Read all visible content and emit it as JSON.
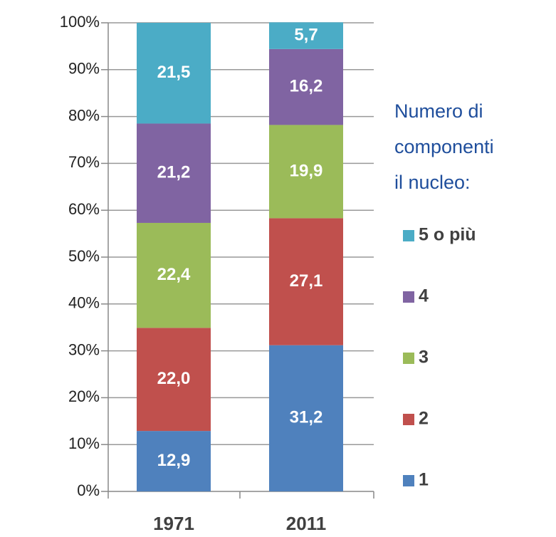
{
  "chart_data": {
    "type": "stacked_bar",
    "categories": [
      "1971",
      "2011"
    ],
    "series": [
      {
        "name": "1",
        "color": "#4f81bd",
        "values": [
          12.9,
          31.2
        ],
        "value_labels": [
          "12,9",
          "31,2"
        ]
      },
      {
        "name": "2",
        "color": "#c0504d",
        "values": [
          22.0,
          27.1
        ],
        "value_labels": [
          "22,0",
          "27,1"
        ]
      },
      {
        "name": "3",
        "color": "#9bbb59",
        "values": [
          22.4,
          19.9
        ],
        "value_labels": [
          "22,4",
          "19,9"
        ]
      },
      {
        "name": "4",
        "color": "#8064a2",
        "values": [
          21.2,
          16.2
        ],
        "value_labels": [
          "21,2",
          "16,2"
        ]
      },
      {
        "name": "5 o più",
        "color": "#4bacc6",
        "values": [
          21.5,
          5.7
        ],
        "value_labels": [
          "21,5",
          "5,7"
        ]
      }
    ],
    "legend_title": [
      "Numero di",
      "componenti",
      "il nucleo:"
    ],
    "ylim": [
      0,
      100
    ],
    "yticks": [
      {
        "value": 0,
        "label": "0%"
      },
      {
        "value": 10,
        "label": "10%"
      },
      {
        "value": 20,
        "label": "20%"
      },
      {
        "value": 30,
        "label": "30%"
      },
      {
        "value": 40,
        "label": "40%"
      },
      {
        "value": 50,
        "label": "50%"
      },
      {
        "value": 60,
        "label": "60%"
      },
      {
        "value": 70,
        "label": "70%"
      },
      {
        "value": 80,
        "label": "80%"
      },
      {
        "value": 90,
        "label": "90%"
      },
      {
        "value": 100,
        "label": "100%"
      }
    ],
    "grid": true
  }
}
